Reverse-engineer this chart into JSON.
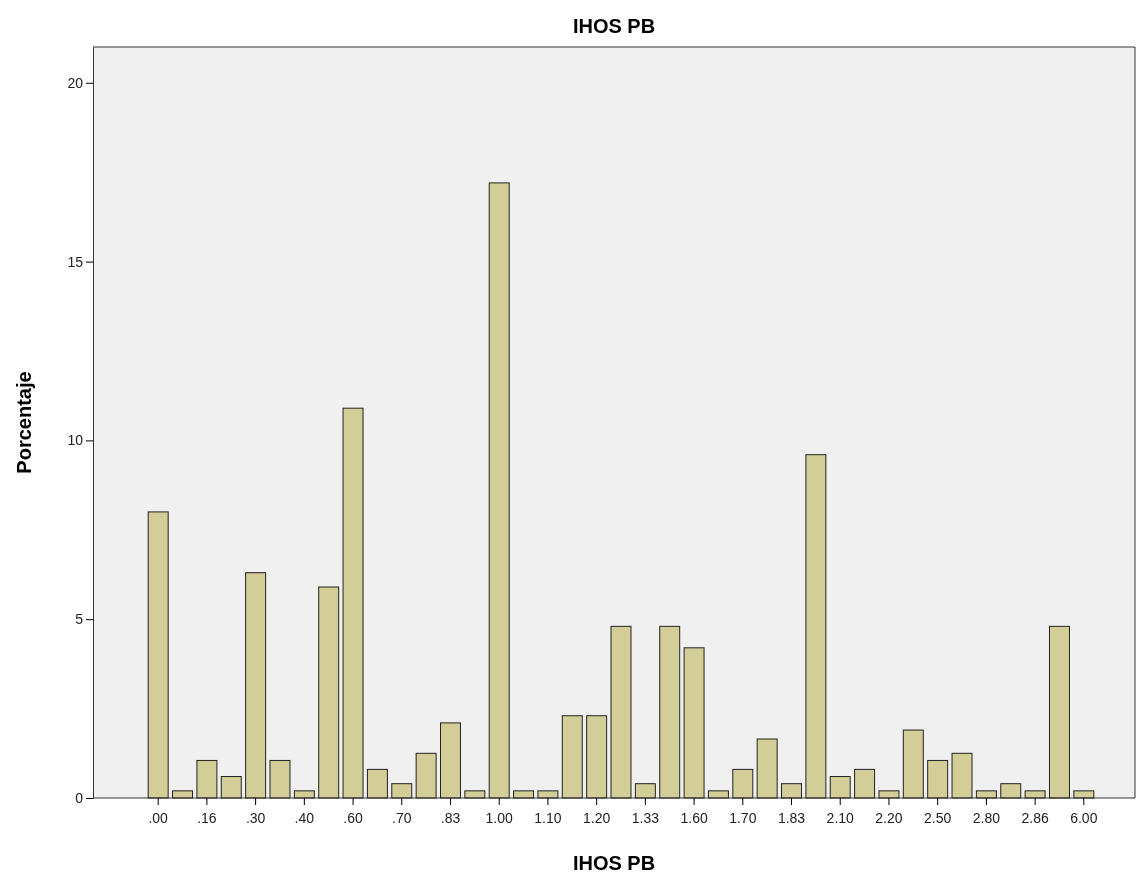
{
  "chart_data": {
    "type": "bar",
    "title": "IHOS PB",
    "xlabel": "IHOS PB",
    "ylabel": "Porcentaje",
    "categories": [
      ".00",
      null,
      ".16",
      null,
      ".30",
      null,
      ".40",
      null,
      ".60",
      null,
      ".70",
      null,
      ".83",
      null,
      "1.00",
      null,
      "1.10",
      null,
      "1.20",
      null,
      "1.33",
      null,
      "1.60",
      null,
      "1.70",
      null,
      "1.83",
      null,
      "2.10",
      null,
      "2.20",
      null,
      "2.50",
      null,
      "2.80",
      null,
      "2.86",
      null,
      "6.00"
    ],
    "values": [
      8.0,
      0.2,
      1.05,
      0.6,
      6.3,
      1.05,
      0.2,
      5.9,
      10.9,
      0.8,
      0.4,
      1.25,
      2.1,
      0.2,
      17.2,
      0.2,
      0.2,
      2.3,
      2.3,
      4.8,
      0.4,
      4.8,
      4.2,
      0.2,
      0.8,
      1.65,
      0.4,
      9.6,
      0.6,
      0.8,
      0.2,
      1.9,
      1.05,
      1.25,
      0.2,
      0.4,
      0.2,
      4.8,
      0.2
    ],
    "color": "#d3ce97",
    "ylim": [
      0,
      21
    ],
    "yticks": [
      0,
      5,
      10,
      15,
      20
    ],
    "grid": false
  }
}
